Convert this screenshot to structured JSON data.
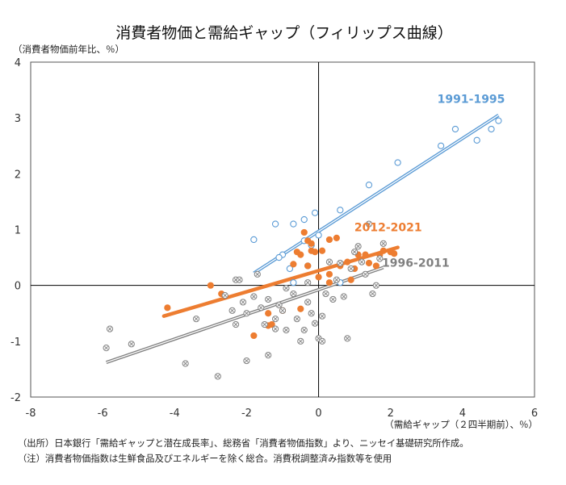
{
  "chart_data": {
    "type": "scatter",
    "title": "消費者物価と需給ギャップ（フィリップス曲線）",
    "ylabel": "（消費者物価前年比、％）",
    "xlabel": "（需給ギャップ（２四半期前）、％）",
    "xlim": [
      -8,
      6
    ],
    "ylim": [
      -2,
      4
    ],
    "xticks": [
      -8,
      -6,
      -4,
      -2,
      0,
      2,
      4,
      6
    ],
    "yticks": [
      -2,
      -1,
      0,
      1,
      2,
      3,
      4
    ],
    "x_tick_labels": [
      "-8",
      "-6",
      "-4",
      "-2",
      "0",
      "2",
      "4",
      "6"
    ],
    "y_tick_labels": [
      "-2",
      "-1",
      "0",
      "1",
      "2",
      "3",
      "4"
    ],
    "grid": false,
    "series": [
      {
        "name": "1991-1995",
        "color": "#5b9bd5",
        "marker": "open-circle",
        "points": [
          [
            5.0,
            2.95
          ],
          [
            4.8,
            2.8
          ],
          [
            4.4,
            2.6
          ],
          [
            3.8,
            2.8
          ],
          [
            3.4,
            2.5
          ],
          [
            2.2,
            2.2
          ],
          [
            1.4,
            1.8
          ],
          [
            0.6,
            1.35
          ],
          [
            -0.1,
            1.3
          ],
          [
            -0.4,
            1.18
          ],
          [
            -0.7,
            1.1
          ],
          [
            -1.2,
            1.1
          ],
          [
            -1.8,
            0.82
          ],
          [
            -0.4,
            0.8
          ],
          [
            0.0,
            0.9
          ],
          [
            -0.2,
            0.72
          ],
          [
            -1.0,
            0.55
          ],
          [
            -0.8,
            0.3
          ],
          [
            -1.1,
            0.5
          ],
          [
            -0.7,
            0.05
          ],
          [
            0.6,
            0.05
          ],
          [
            -0.3,
            0.35
          ]
        ],
        "trend": [
          [
            -1.8,
            0.22
          ],
          [
            5.0,
            3.05
          ]
        ]
      },
      {
        "name": "2012-2021",
        "color": "#ed7d31",
        "marker": "filled-circle",
        "points": [
          [
            -4.2,
            -0.4
          ],
          [
            -3.0,
            0.0
          ],
          [
            -2.7,
            -0.15
          ],
          [
            -1.8,
            -0.9
          ],
          [
            -1.4,
            -0.72
          ],
          [
            -1.3,
            -0.7
          ],
          [
            -1.4,
            -0.5
          ],
          [
            -1.0,
            -0.45
          ],
          [
            -0.5,
            -0.42
          ],
          [
            -0.7,
            0.38
          ],
          [
            -0.6,
            0.6
          ],
          [
            -0.5,
            0.55
          ],
          [
            -0.4,
            0.95
          ],
          [
            -0.3,
            0.8
          ],
          [
            -0.2,
            0.75
          ],
          [
            -0.2,
            0.62
          ],
          [
            -0.1,
            0.6
          ],
          [
            -0.3,
            0.35
          ],
          [
            0.1,
            0.62
          ],
          [
            0.3,
            0.2
          ],
          [
            0.3,
            0.05
          ],
          [
            0.0,
            0.15
          ],
          [
            0.6,
            0.35
          ],
          [
            0.5,
            0.85
          ],
          [
            0.3,
            0.82
          ],
          [
            0.8,
            0.42
          ],
          [
            1.0,
            0.3
          ],
          [
            1.1,
            0.55
          ],
          [
            1.3,
            0.55
          ],
          [
            1.4,
            0.4
          ],
          [
            1.6,
            0.35
          ],
          [
            1.7,
            0.55
          ],
          [
            1.8,
            0.62
          ],
          [
            2.0,
            0.6
          ],
          [
            2.1,
            0.57
          ],
          [
            0.9,
            0.1
          ]
        ],
        "trend": [
          [
            -4.3,
            -0.55
          ],
          [
            2.2,
            0.68
          ]
        ]
      },
      {
        "name": "1996-2011",
        "color": "#808080",
        "marker": "crossed-circle",
        "points": [
          [
            -5.9,
            -1.12
          ],
          [
            -5.8,
            -0.78
          ],
          [
            -5.2,
            -1.05
          ],
          [
            -3.7,
            -1.4
          ],
          [
            -3.4,
            -0.6
          ],
          [
            -2.8,
            -1.63
          ],
          [
            -2.6,
            -0.18
          ],
          [
            -2.4,
            -0.45
          ],
          [
            -2.3,
            -0.7
          ],
          [
            -2.3,
            0.1
          ],
          [
            -2.2,
            0.1
          ],
          [
            -2.1,
            -0.3
          ],
          [
            -2.0,
            -0.5
          ],
          [
            -2.0,
            -1.35
          ],
          [
            -1.8,
            -0.2
          ],
          [
            -1.7,
            0.2
          ],
          [
            -1.6,
            -0.4
          ],
          [
            -1.5,
            -0.7
          ],
          [
            -1.4,
            -0.25
          ],
          [
            -1.4,
            -1.25
          ],
          [
            -1.2,
            -0.6
          ],
          [
            -1.2,
            -0.78
          ],
          [
            -1.1,
            -0.35
          ],
          [
            -1.0,
            -0.45
          ],
          [
            -0.9,
            -0.05
          ],
          [
            -0.9,
            -0.8
          ],
          [
            -0.7,
            -0.15
          ],
          [
            -0.6,
            -0.6
          ],
          [
            -0.5,
            -1.0
          ],
          [
            -0.4,
            -0.8
          ],
          [
            -0.3,
            0.05
          ],
          [
            -0.3,
            -0.3
          ],
          [
            -0.2,
            -0.5
          ],
          [
            -0.1,
            -0.68
          ],
          [
            0.0,
            -0.95
          ],
          [
            0.1,
            -0.55
          ],
          [
            0.1,
            -1.0
          ],
          [
            0.2,
            -0.15
          ],
          [
            0.3,
            0.42
          ],
          [
            0.4,
            -0.25
          ],
          [
            0.5,
            0.1
          ],
          [
            0.6,
            0.4
          ],
          [
            0.7,
            -0.2
          ],
          [
            0.8,
            -0.95
          ],
          [
            0.9,
            0.3
          ],
          [
            1.0,
            0.6
          ],
          [
            1.1,
            0.7
          ],
          [
            1.2,
            0.42
          ],
          [
            1.3,
            0.2
          ],
          [
            1.4,
            1.1
          ],
          [
            1.5,
            -0.15
          ],
          [
            1.6,
            0.0
          ],
          [
            1.7,
            0.48
          ],
          [
            1.8,
            0.75
          ]
        ],
        "trend": [
          [
            -5.9,
            -1.38
          ],
          [
            1.8,
            0.32
          ]
        ]
      }
    ]
  },
  "notes": [
    "（出所）日本銀行「需給ギャップと潜在成長率」、総務省「消費者物価指数」より、ニッセイ基礎研究所作成。",
    "（注）消費者物価指数は生鮮食品及びエネルギーを除く総合。消費税調整済み指数等を使用"
  ]
}
